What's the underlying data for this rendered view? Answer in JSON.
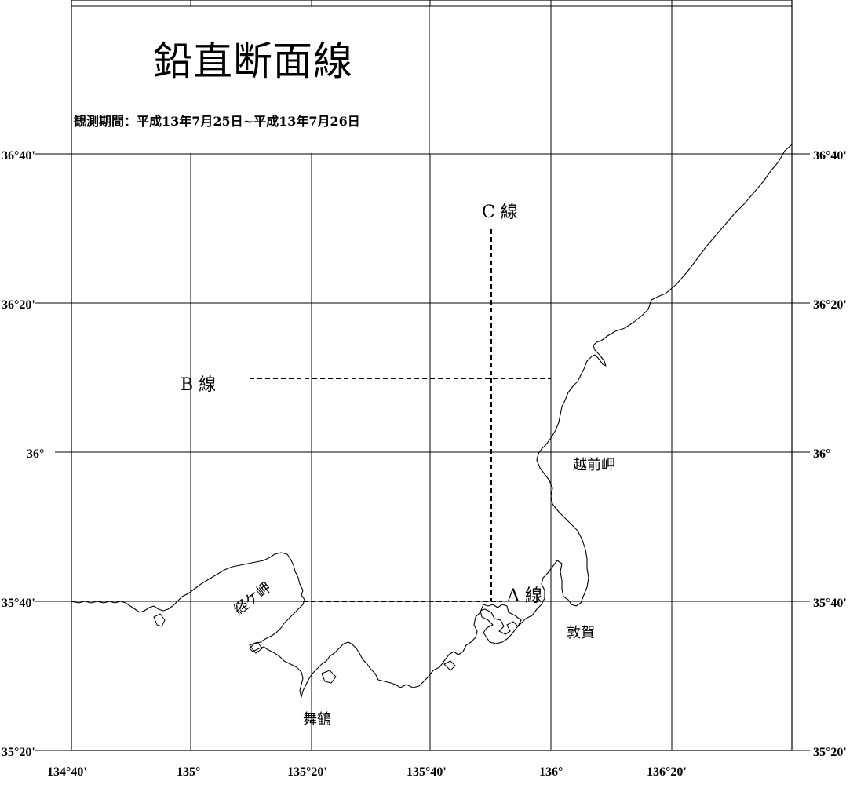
{
  "map": {
    "title": "鉛直断面線",
    "period": "観測期間：平成13年7月25日~平成13年7月26日",
    "lat_labels": [
      "36°40'",
      "36°20'",
      "36°",
      "35°40'",
      "35°20'"
    ],
    "lon_labels": [
      "134°40'",
      "135°",
      "135°20'",
      "135°40'",
      "136°",
      "136°20'"
    ],
    "section_lines": {
      "a": "A 線",
      "b": "B 線",
      "c": "C 線"
    },
    "places": {
      "echizen": "越前岬",
      "tsuruga": "敦賀",
      "maizuru": "舞鶴",
      "kyogamisaki": "経ケ岬"
    }
  }
}
